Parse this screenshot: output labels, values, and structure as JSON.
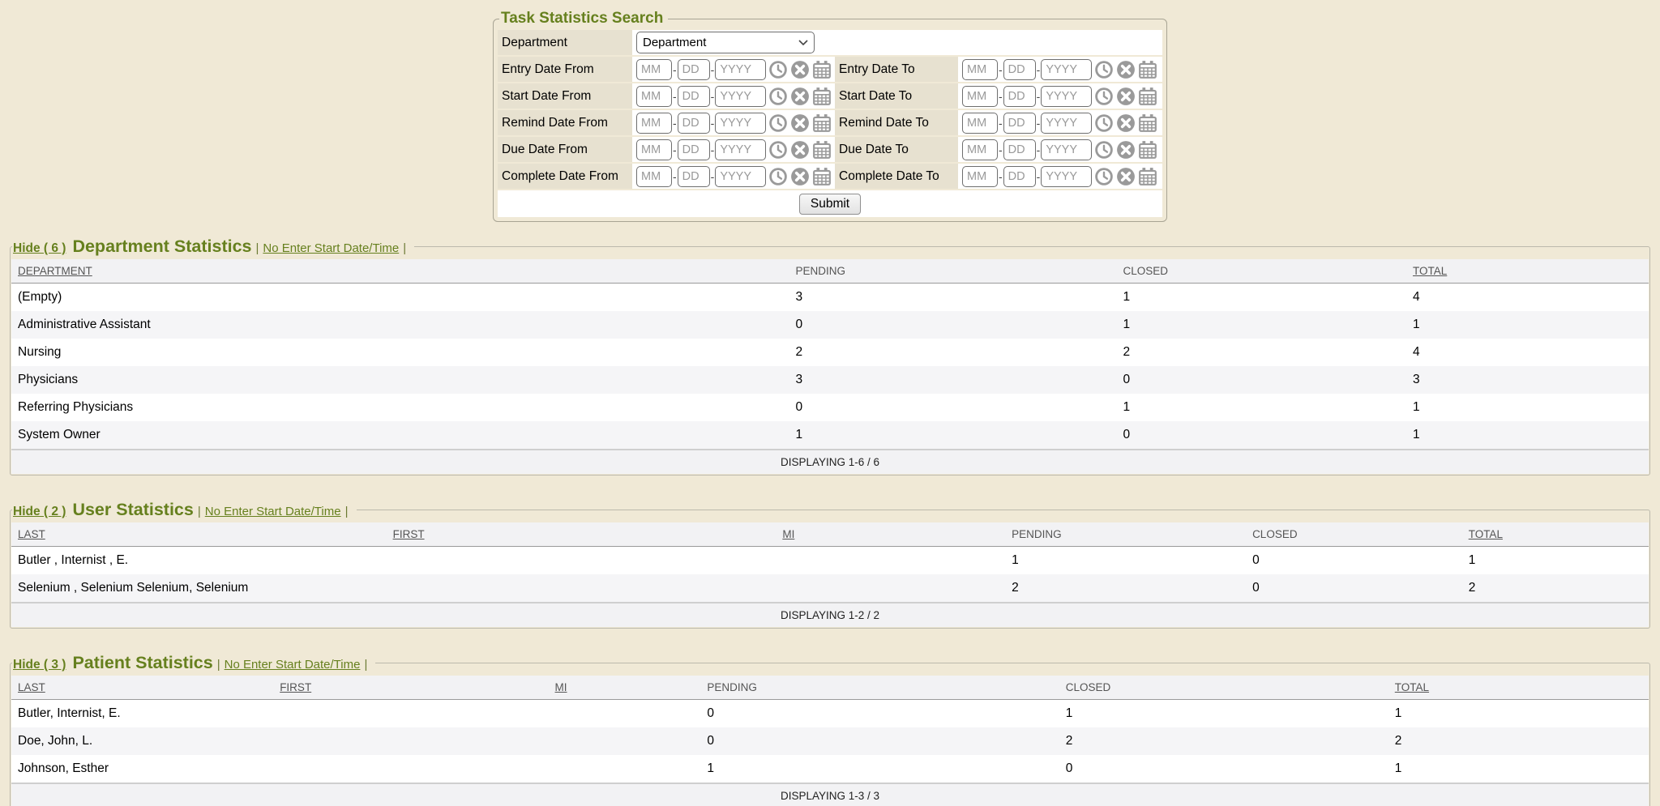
{
  "ui": {
    "pipe": "|"
  },
  "colors": {
    "accent_green": "#66801e",
    "page_bg": "#f0e9d6",
    "label_bg": "#e7e1d0",
    "header_bg": "#f2f2f4",
    "alt_row_bg": "#f5f5f7",
    "icon_gray": "#9a9a9a"
  },
  "form": {
    "legend": "Task Statistics Search",
    "department_label": "Department",
    "department_value": "Department",
    "placeholders": {
      "mm": "MM",
      "dd": "DD",
      "yyyy": "YYYY"
    },
    "dash": "-",
    "icon_names": [
      "clock-icon",
      "clear-icon",
      "calendar-icon"
    ],
    "date_rows": [
      {
        "from_label": "Entry Date From",
        "to_label": "Entry Date To"
      },
      {
        "from_label": "Start Date From",
        "to_label": "Start Date To"
      },
      {
        "from_label": "Remind Date From",
        "to_label": "Remind Date To"
      },
      {
        "from_label": "Due Date From",
        "to_label": "Due Date To"
      },
      {
        "from_label": "Complete Date From",
        "to_label": "Complete Date To"
      }
    ],
    "submit_label": "Submit"
  },
  "sections": [
    {
      "key": "department",
      "hide_label": "Hide ( 6 )",
      "title": "Department Statistics",
      "link_label": "No Enter Start Date/Time",
      "columns": [
        {
          "label": "DEPARTMENT",
          "sortable": true
        },
        {
          "label": "PENDING",
          "sortable": false
        },
        {
          "label": "CLOSED",
          "sortable": false
        },
        {
          "label": "TOTAL",
          "sortable": true
        }
      ],
      "rows": [
        [
          "(Empty)",
          "3",
          "1",
          "4"
        ],
        [
          "Administrative Assistant",
          "0",
          "1",
          "1"
        ],
        [
          "Nursing",
          "2",
          "2",
          "4"
        ],
        [
          "Physicians",
          "3",
          "0",
          "3"
        ],
        [
          "Referring Physicians",
          "0",
          "1",
          "1"
        ],
        [
          "System Owner",
          "1",
          "0",
          "1"
        ]
      ],
      "footer": "DISPLAYING 1-6 / 6"
    },
    {
      "key": "user",
      "hide_label": "Hide ( 2 )",
      "title": "User Statistics",
      "link_label": "No Enter Start Date/Time",
      "columns": [
        {
          "label": "LAST",
          "sortable": true
        },
        {
          "label": "FIRST",
          "sortable": true
        },
        {
          "label": "MI",
          "sortable": true
        },
        {
          "label": "PENDING",
          "sortable": false
        },
        {
          "label": "CLOSED",
          "sortable": false
        },
        {
          "label": "TOTAL",
          "sortable": true
        }
      ],
      "rows": [
        [
          "Butler , Internist , E.",
          "",
          "",
          "1",
          "0",
          "1"
        ],
        [
          "Selenium , Selenium Selenium, Selenium",
          "",
          "",
          "2",
          "0",
          "2"
        ]
      ],
      "footer": "DISPLAYING 1-2 / 2"
    },
    {
      "key": "patient",
      "hide_label": "Hide ( 3 )",
      "title": "Patient Statistics",
      "link_label": "No Enter Start Date/Time",
      "columns": [
        {
          "label": "LAST",
          "sortable": true
        },
        {
          "label": "FIRST",
          "sortable": true
        },
        {
          "label": "MI",
          "sortable": true
        },
        {
          "label": "PENDING",
          "sortable": false
        },
        {
          "label": "CLOSED",
          "sortable": false
        },
        {
          "label": "TOTAL",
          "sortable": true
        }
      ],
      "rows": [
        [
          "Butler, Internist, E.",
          "",
          "",
          "0",
          "1",
          "1"
        ],
        [
          "Doe, John, L.",
          "",
          "",
          "0",
          "2",
          "2"
        ],
        [
          "Johnson, Esther",
          "",
          "",
          "1",
          "0",
          "1"
        ]
      ],
      "footer": "DISPLAYING 1-3 / 3"
    }
  ]
}
